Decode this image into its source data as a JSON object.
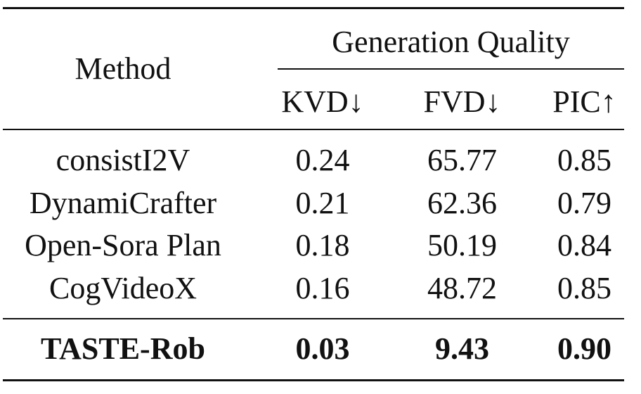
{
  "table": {
    "header": {
      "method": "Method",
      "group": "Generation Quality",
      "columns": [
        "KVD↓",
        "FVD↓",
        "PIC↑"
      ]
    },
    "rows": [
      {
        "method": "consistI2V",
        "kvd": "0.24",
        "fvd": "65.77",
        "pic": "0.85"
      },
      {
        "method": "DynamiCrafter",
        "kvd": "0.21",
        "fvd": "62.36",
        "pic": "0.79"
      },
      {
        "method": "Open-Sora Plan",
        "kvd": "0.18",
        "fvd": "50.19",
        "pic": "0.84"
      },
      {
        "method": "CogVideoX",
        "kvd": "0.16",
        "fvd": "48.72",
        "pic": "0.85"
      }
    ],
    "highlight_row": {
      "method": "TASTE-Rob",
      "kvd": "0.03",
      "fvd": "9.43",
      "pic": "0.90"
    }
  }
}
